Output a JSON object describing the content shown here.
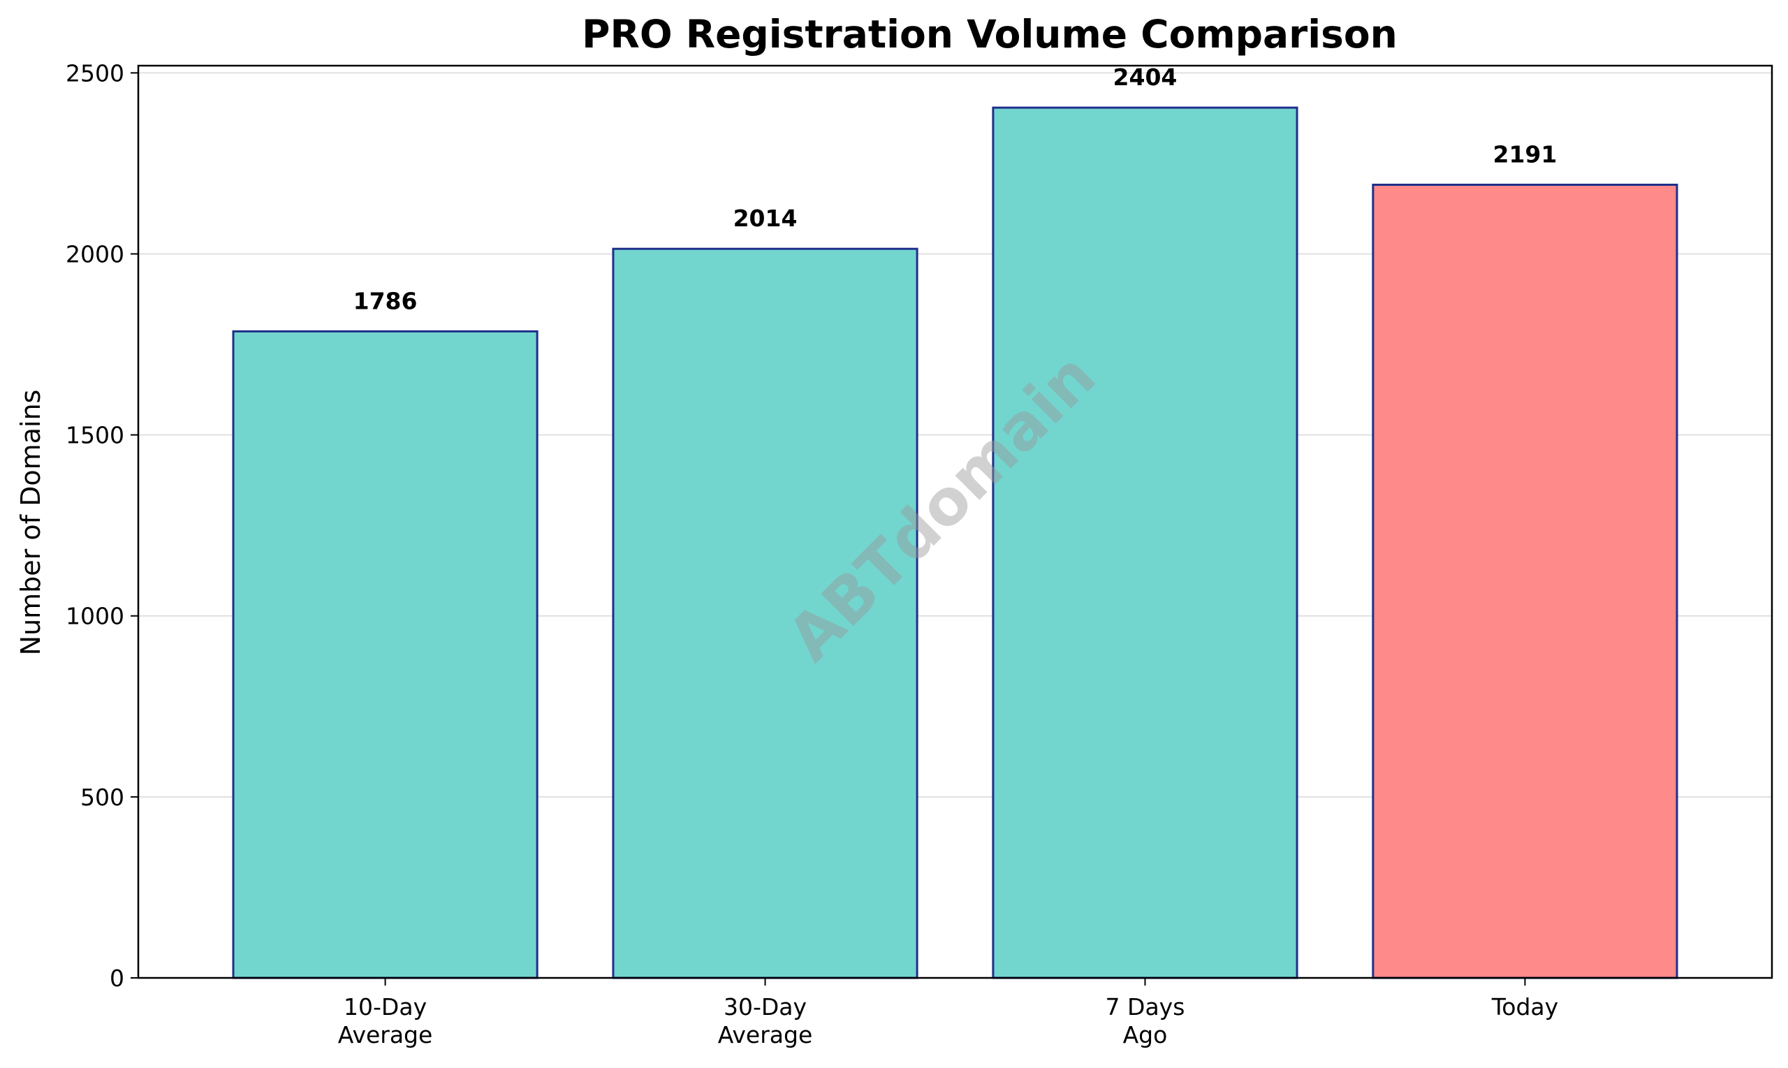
{
  "chart_data": {
    "type": "bar",
    "title": "PRO Registration Volume Comparison",
    "xlabel": "",
    "ylabel": "Number of Domains",
    "categories": [
      [
        "10-Day",
        "Average"
      ],
      [
        "30-Day",
        "Average"
      ],
      [
        "7 Days",
        "Ago"
      ],
      [
        "Today"
      ]
    ],
    "values": [
      1786,
      2014,
      2404,
      2191
    ],
    "data_labels": [
      "1786",
      "2014",
      "2404",
      "2191"
    ],
    "ylim": [
      0,
      2520
    ],
    "yticks": [
      0,
      500,
      1000,
      1500,
      2000,
      2500
    ],
    "grid": "y",
    "bar_colors": [
      "#72d6cf",
      "#72d6cf",
      "#72d6cf",
      "#ff8a8a"
    ],
    "bar_edge_color": "#1f2f8a"
  },
  "watermark": {
    "text": "ABTdomain",
    "color": "#9a9a9a"
  }
}
